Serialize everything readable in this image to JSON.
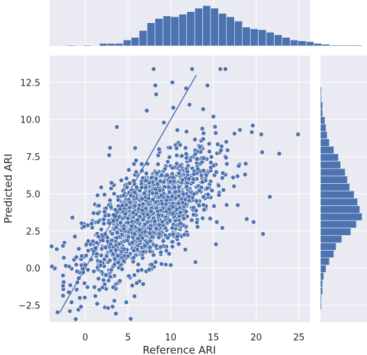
{
  "chart_data": {
    "type": "scatter",
    "title": "",
    "xlabel": "Reference ARI",
    "ylabel": "Predicted ARI",
    "xlim": [
      -4.2,
      26.3
    ],
    "ylim": [
      -3.65,
      14.3
    ],
    "x_ticks": [
      0,
      5,
      10,
      15,
      20,
      25
    ],
    "y_ticks": [
      -2.5,
      0.0,
      2.5,
      5.0,
      7.5,
      10.0,
      12.5
    ],
    "x_tick_labels": [
      "0",
      "5",
      "10",
      "15",
      "20",
      "25"
    ],
    "y_tick_labels": [
      "−2.5",
      "0.0",
      "2.5",
      "5.0",
      "7.5",
      "10.0",
      "12.5"
    ],
    "grid": true,
    "background": "#eaeaf2",
    "point_color": "#4c72b0",
    "n_points_approx": 1500,
    "reference_line": {
      "label": "",
      "x": [
        -3,
        13
      ],
      "y": [
        -3,
        13
      ]
    },
    "points": [
      [
        8,
        13.4
      ],
      [
        12.5,
        13.4
      ],
      [
        15.8,
        13.4
      ],
      [
        16.4,
        13.4
      ],
      [
        10.2,
        12.5
      ],
      [
        8.2,
        12.3
      ],
      [
        11.8,
        12.1
      ],
      [
        8.3,
        11.7
      ],
      [
        13.8,
        10.7
      ],
      [
        15,
        10.2
      ],
      [
        9.2,
        9.8
      ],
      [
        19.6,
        9.6
      ],
      [
        18.1,
        9.3
      ],
      [
        24.9,
        9
      ],
      [
        20.6,
        9
      ],
      [
        22.7,
        7.7
      ],
      [
        20.7,
        7.8
      ],
      [
        10.3,
        10.8
      ],
      [
        3.7,
        9.5
      ],
      [
        2.9,
        8.1
      ],
      [
        2.8,
        7.6
      ],
      [
        21.6,
        4.8
      ],
      [
        15.4,
        3.1
      ],
      [
        20.8,
        2.3
      ],
      [
        18.9,
        3.3
      ],
      [
        19.7,
        3.1
      ],
      [
        -2.6,
        1.5
      ],
      [
        -2.5,
        0.7
      ],
      [
        -2.6,
        -0.5
      ],
      [
        -2.6,
        -1.2
      ],
      [
        -1.6,
        -2.3
      ],
      [
        -1.8,
        -2.9
      ],
      [
        -0.8,
        -2.8
      ],
      [
        -0.5,
        -2.6
      ],
      [
        1.4,
        -2.4
      ],
      [
        3.2,
        -2.6
      ],
      [
        3.4,
        -2.2
      ],
      [
        4.8,
        -2.3
      ],
      [
        1.6,
        4.2
      ],
      [
        -1.5,
        3.4
      ],
      [
        14.3,
        12.3
      ],
      [
        12.2,
        11
      ],
      [
        7.2,
        10.6
      ],
      [
        10,
        0.2
      ],
      [
        12.9,
        0.4
      ],
      [
        15.3,
        1.6
      ],
      [
        18.7,
        6.3
      ],
      [
        16.5,
        8.5
      ],
      [
        17.3,
        6.1
      ],
      [
        0,
        0.2
      ]
    ],
    "top_histogram": {
      "description": "marginal distribution of Reference ARI",
      "bin_edges_start": -3.0,
      "bin_width": 0.93,
      "counts": [
        0,
        1,
        0,
        1,
        0,
        3,
        3,
        3,
        7,
        10,
        18,
        27,
        32,
        35,
        34,
        37,
        40,
        44,
        47,
        44,
        38,
        34,
        29,
        22,
        20,
        19,
        16,
        13,
        10,
        7,
        6,
        5,
        3,
        2,
        1,
        1,
        1,
        1,
        0,
        0,
        0,
        0,
        0,
        0,
        0,
        0,
        0,
        0,
        0,
        0,
        0,
        0,
        0,
        1
      ]
    },
    "right_histogram": {
      "description": "marginal distribution of Predicted ARI",
      "bin_edges_start": -2.8,
      "bin_width": 0.5,
      "counts": [
        1,
        1,
        2,
        2,
        3,
        5,
        8,
        12,
        14,
        19,
        27,
        32,
        37,
        35,
        33,
        30,
        26,
        24,
        22,
        18,
        16,
        12,
        8,
        6,
        5,
        4,
        2,
        2,
        1,
        1,
        0,
        0,
        0,
        0,
        0,
        0
      ]
    }
  }
}
